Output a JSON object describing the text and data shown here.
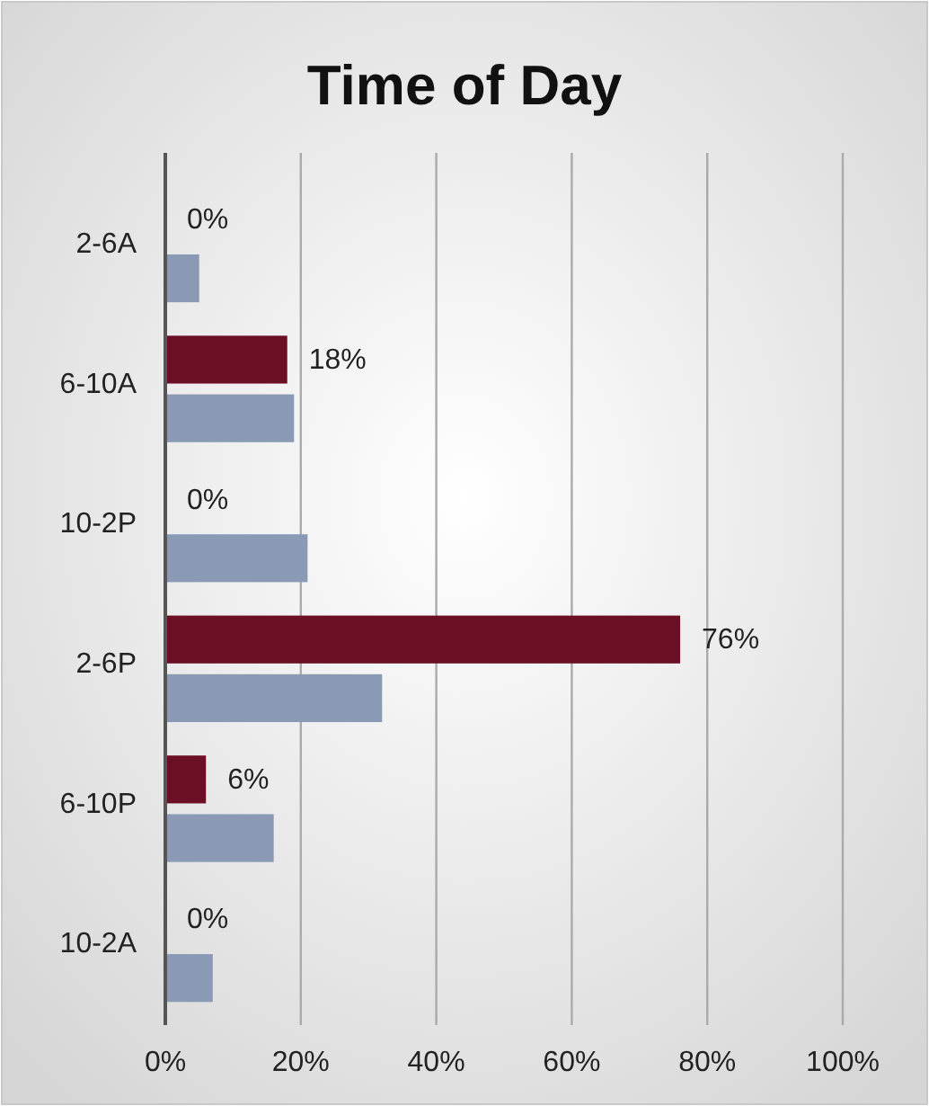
{
  "chart_data": {
    "type": "bar",
    "orientation": "horizontal",
    "title": "Time of Day",
    "categories": [
      "2-6A",
      "6-10A",
      "10-2P",
      "2-6P",
      "6-10P",
      "10-2A"
    ],
    "series": [
      {
        "color": "#6b0f24",
        "values": [
          0,
          18,
          0,
          76,
          6,
          0
        ],
        "value_labels": [
          "0%",
          "18%",
          "0%",
          "76%",
          "6%",
          "0%"
        ]
      },
      {
        "color": "#8a9ab5",
        "values": [
          5,
          19,
          21,
          32,
          16,
          7
        ]
      }
    ],
    "xlim": [
      0,
      100
    ],
    "xticks": [
      {
        "value": 0,
        "label": "0%"
      },
      {
        "value": 20,
        "label": "20%"
      },
      {
        "value": 40,
        "label": "40%"
      },
      {
        "value": 60,
        "label": "60%"
      },
      {
        "value": 80,
        "label": "80%"
      },
      {
        "value": 100,
        "label": "100%"
      }
    ],
    "grid": "x"
  }
}
